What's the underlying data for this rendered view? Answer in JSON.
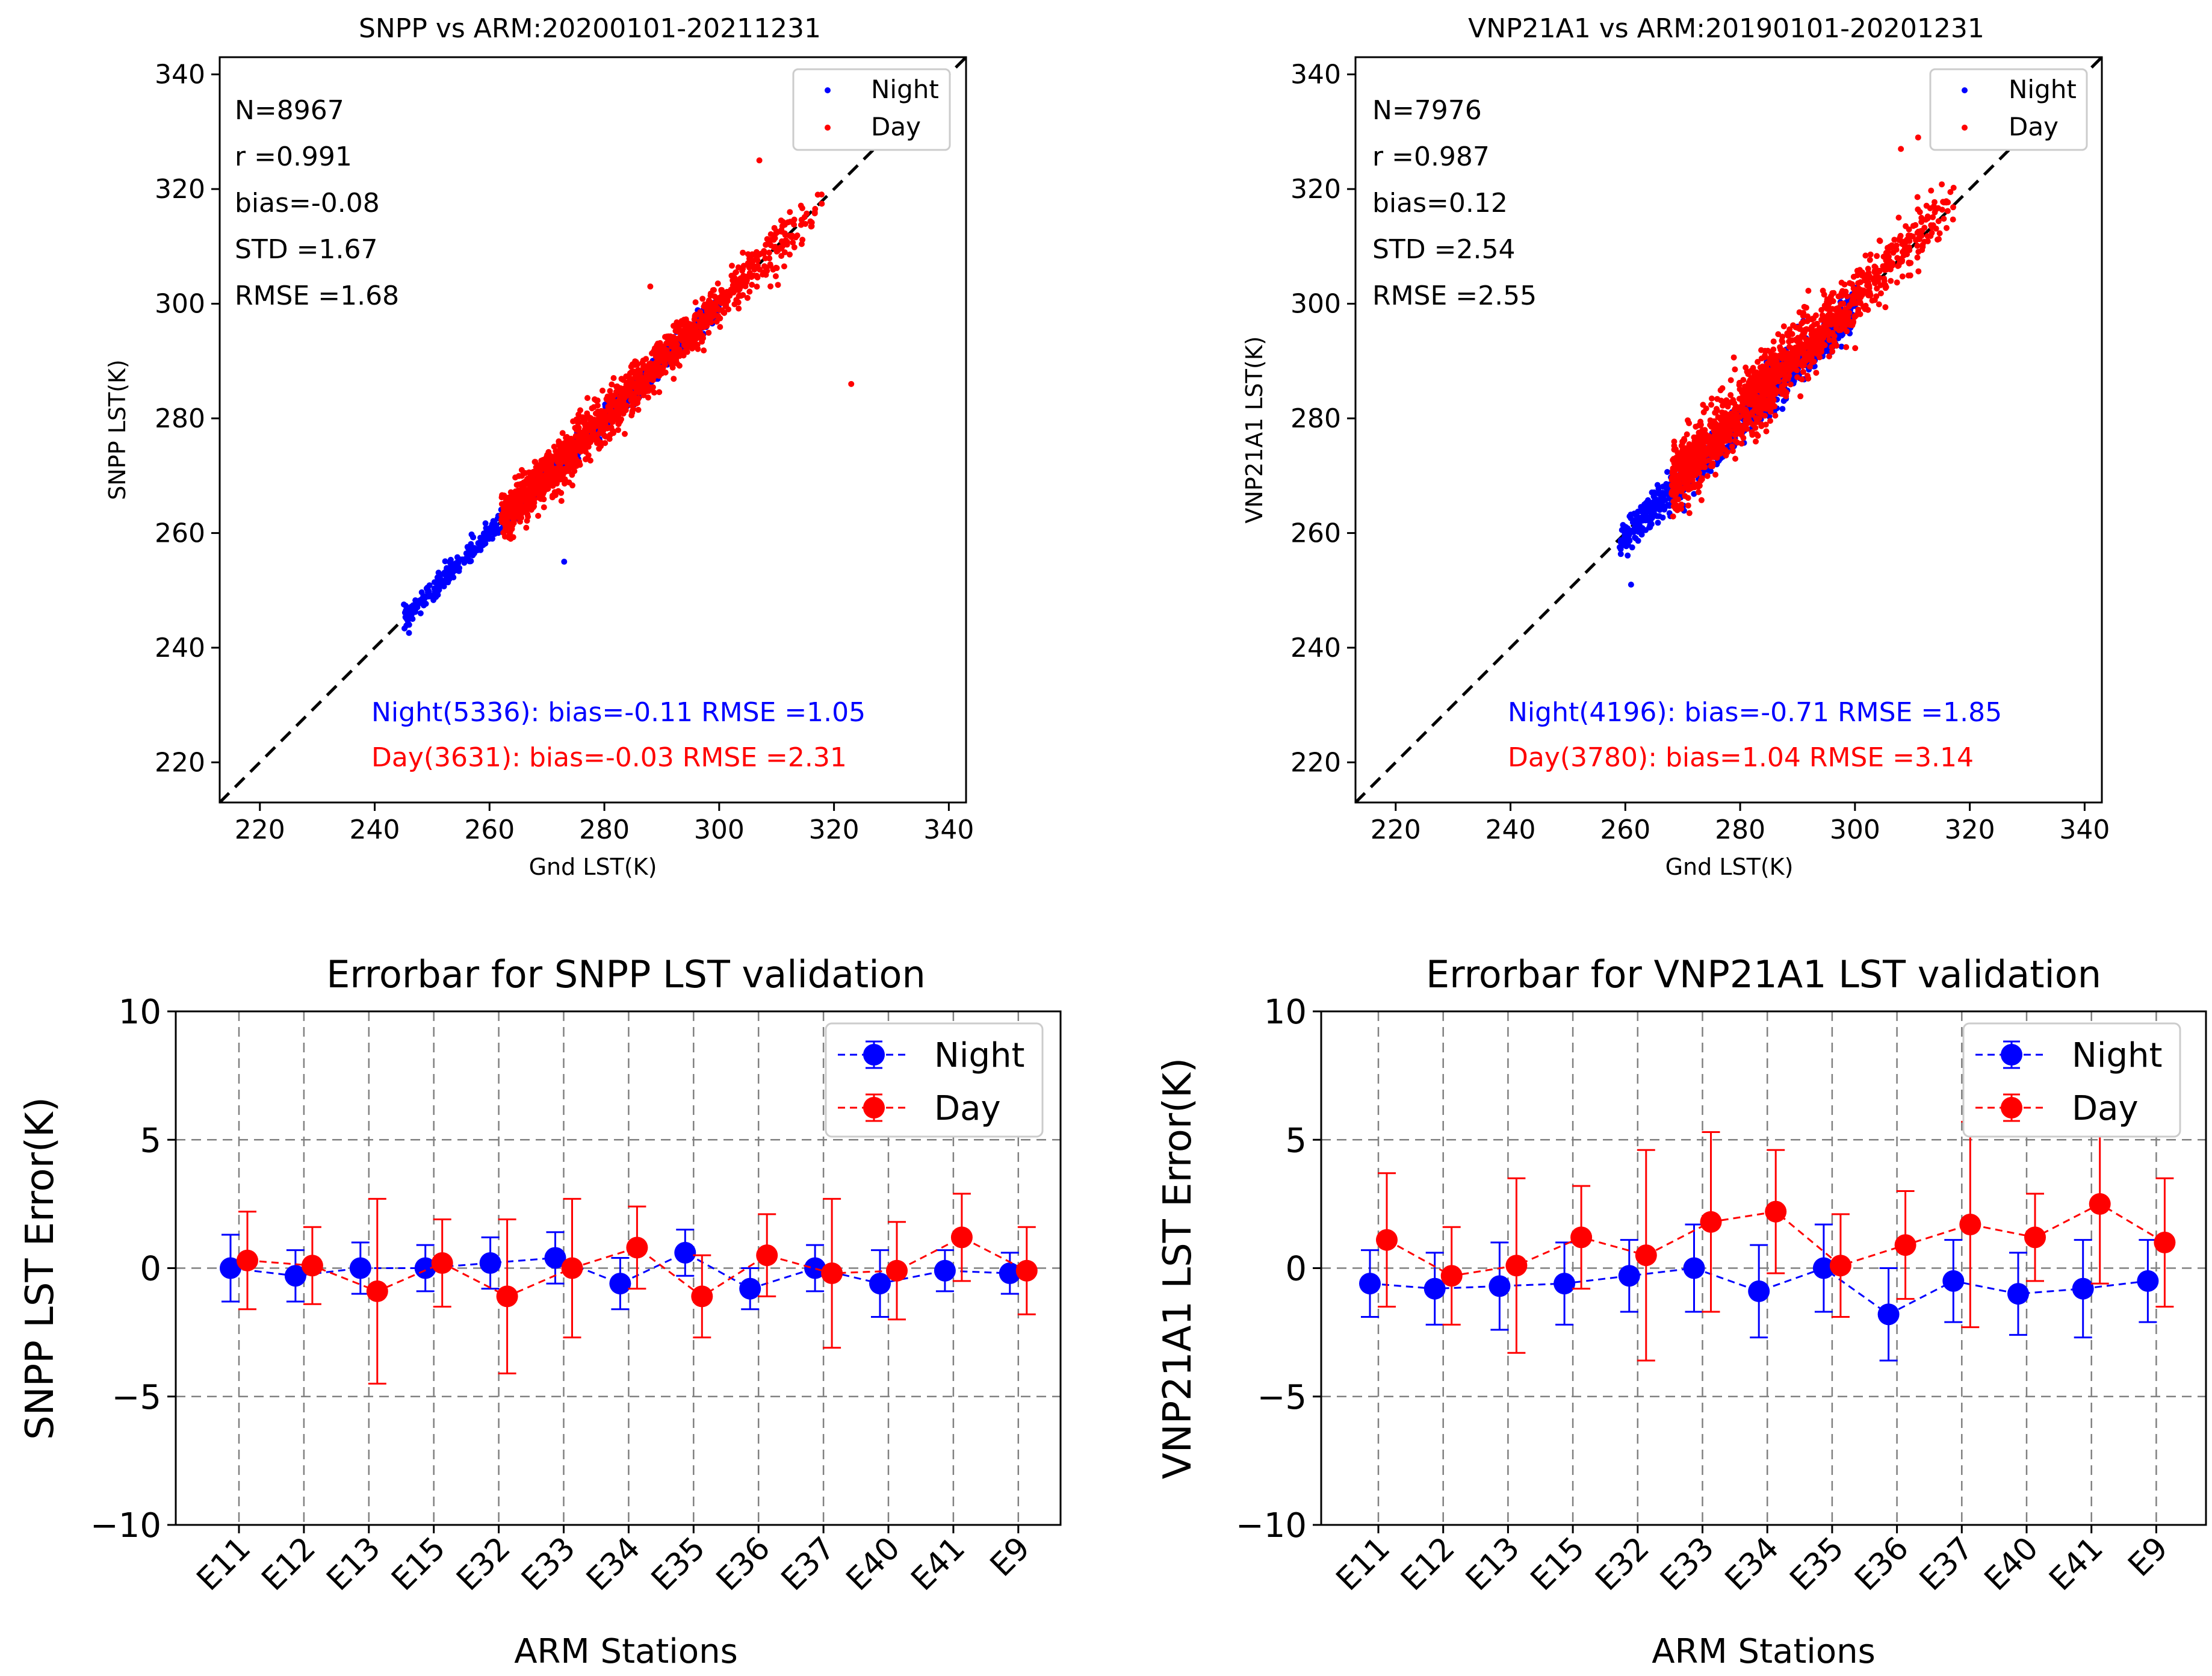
{
  "chart_data": [
    {
      "type": "scatter",
      "title": "SNPP vs ARM:20200101-20211231",
      "xlabel": "Gnd LST(K)",
      "ylabel": "SNPP LST(K)",
      "xlim": [
        213,
        343
      ],
      "ylim": [
        213,
        343
      ],
      "xticks": [
        220,
        240,
        260,
        280,
        300,
        320,
        340
      ],
      "yticks": [
        220,
        240,
        260,
        280,
        300,
        320,
        340
      ],
      "reference_line": "1:1",
      "stats": [
        "N=8967",
        "r =0.991",
        "bias=-0.08",
        "STD =1.67",
        "RMSE =1.68"
      ],
      "legend": {
        "location": "top-right",
        "entries": [
          {
            "label": "Night",
            "color": "#0000ff"
          },
          {
            "label": "Day",
            "color": "#ff0000"
          }
        ]
      },
      "group_stats": [
        {
          "text": "Night(5336): bias=-0.11 RMSE =1.05",
          "color": "#0000ff"
        },
        {
          "text": "Day(3631): bias=-0.03 RMSE =2.31",
          "color": "#ff0000"
        }
      ],
      "series": [
        {
          "name": "Night",
          "color": "#0000ff",
          "x_range": [
            245,
            300
          ],
          "bias": -0.11,
          "spread": 1.05,
          "outliers": [
            [
              273,
              255
            ],
            [
              246,
              244
            ],
            [
              248,
              246
            ]
          ]
        },
        {
          "name": "Day",
          "color": "#ff0000",
          "x_range": [
            262,
            319
          ],
          "bias": -0.03,
          "spread": 2.31,
          "outliers": [
            [
              323,
              286
            ],
            [
              307,
              325
            ],
            [
              316,
              328
            ],
            [
              288,
              303
            ]
          ]
        }
      ]
    },
    {
      "type": "scatter",
      "title": "VNP21A1 vs ARM:20190101-20201231",
      "xlabel": "Gnd LST(K)",
      "ylabel": "VNP21A1 LST(K)",
      "xlim": [
        213,
        343
      ],
      "ylim": [
        213,
        343
      ],
      "xticks": [
        220,
        240,
        260,
        280,
        300,
        320,
        340
      ],
      "yticks": [
        220,
        240,
        260,
        280,
        300,
        320,
        340
      ],
      "reference_line": "1:1",
      "stats": [
        "N=7976",
        "r =0.987",
        "bias=0.12",
        "STD =2.54",
        "RMSE =2.55"
      ],
      "legend": {
        "location": "top-right",
        "entries": [
          {
            "label": "Night",
            "color": "#0000ff"
          },
          {
            "label": "Day",
            "color": "#ff0000"
          }
        ]
      },
      "group_stats": [
        {
          "text": "Night(4196): bias=-0.71 RMSE =1.85",
          "color": "#0000ff"
        },
        {
          "text": "Day(3780): bias=1.04 RMSE =3.14",
          "color": "#ff0000"
        }
      ],
      "series": [
        {
          "name": "Night",
          "color": "#0000ff",
          "x_range": [
            259,
            300
          ],
          "bias": -0.71,
          "spread": 1.85,
          "outliers": [
            [
              261,
              251
            ],
            [
              290,
              296
            ],
            [
              291,
              297
            ]
          ]
        },
        {
          "name": "Day",
          "color": "#ff0000",
          "x_range": [
            268,
            318
          ],
          "bias": 1.04,
          "spread": 3.14,
          "outliers": [
            [
              311,
              329
            ],
            [
              308,
              327
            ],
            [
              314,
              328
            ]
          ]
        }
      ]
    },
    {
      "type": "errorbar",
      "title": "Errorbar for SNPP LST validation",
      "xlabel": "ARM Stations",
      "ylabel": "SNPP LST Error(K)",
      "ylim": [
        -10,
        10
      ],
      "yticks": [
        10,
        5,
        0,
        -5,
        -10
      ],
      "ytick_labels": [
        "10",
        "5",
        "0",
        "−5",
        "−10"
      ],
      "categories": [
        "E11",
        "E12",
        "E13",
        "E15",
        "E32",
        "E33",
        "E34",
        "E35",
        "E36",
        "E37",
        "E40",
        "E41",
        "E9"
      ],
      "legend": {
        "location": "top-right",
        "entries": [
          {
            "label": "Night",
            "color": "#0000ff"
          },
          {
            "label": "Day",
            "color": "#ff0000"
          }
        ]
      },
      "series": [
        {
          "name": "Night",
          "color": "#0000ff",
          "values": [
            0.0,
            -0.3,
            0.0,
            0.0,
            0.2,
            0.4,
            -0.6,
            0.6,
            -0.8,
            0.0,
            -0.6,
            -0.1,
            -0.2
          ],
          "errors": [
            1.3,
            1.0,
            1.0,
            0.9,
            1.0,
            1.0,
            1.0,
            0.9,
            0.8,
            0.9,
            1.3,
            0.8,
            0.8
          ]
        },
        {
          "name": "Day",
          "color": "#ff0000",
          "values": [
            0.3,
            0.1,
            -0.9,
            0.2,
            -1.1,
            0.0,
            0.8,
            -1.1,
            0.5,
            -0.2,
            -0.1,
            1.2,
            -0.1
          ],
          "errors": [
            1.9,
            1.5,
            3.6,
            1.7,
            3.0,
            2.7,
            1.6,
            1.6,
            1.6,
            2.9,
            1.9,
            1.7,
            1.7
          ]
        }
      ]
    },
    {
      "type": "errorbar",
      "title": "Errorbar for VNP21A1 LST validation",
      "xlabel": "ARM Stations",
      "ylabel": "VNP21A1 LST Error(K)",
      "ylim": [
        -10,
        10
      ],
      "yticks": [
        10,
        5,
        0,
        -5,
        -10
      ],
      "ytick_labels": [
        "10",
        "5",
        "0",
        "−5",
        "−10"
      ],
      "categories": [
        "E11",
        "E12",
        "E13",
        "E15",
        "E32",
        "E33",
        "E34",
        "E35",
        "E36",
        "E37",
        "E40",
        "E41",
        "E9"
      ],
      "legend": {
        "location": "top-right",
        "entries": [
          {
            "label": "Night",
            "color": "#0000ff"
          },
          {
            "label": "Day",
            "color": "#ff0000"
          }
        ]
      },
      "series": [
        {
          "name": "Night",
          "color": "#0000ff",
          "values": [
            -0.6,
            -0.8,
            -0.7,
            -0.6,
            -0.3,
            0.0,
            -0.9,
            0.0,
            -1.8,
            -0.5,
            -1.0,
            -0.8,
            -0.5
          ],
          "errors": [
            1.3,
            1.4,
            1.7,
            1.6,
            1.4,
            1.7,
            1.8,
            1.7,
            1.8,
            1.6,
            1.6,
            1.9,
            1.6
          ]
        },
        {
          "name": "Day",
          "color": "#ff0000",
          "values": [
            1.1,
            -0.3,
            0.1,
            1.2,
            0.5,
            1.8,
            2.2,
            0.1,
            0.9,
            1.7,
            1.2,
            2.5,
            1.0
          ],
          "errors": [
            2.6,
            1.9,
            3.4,
            2.0,
            4.1,
            3.5,
            2.4,
            2.0,
            2.1,
            4.0,
            1.7,
            3.1,
            2.5
          ]
        }
      ]
    }
  ]
}
